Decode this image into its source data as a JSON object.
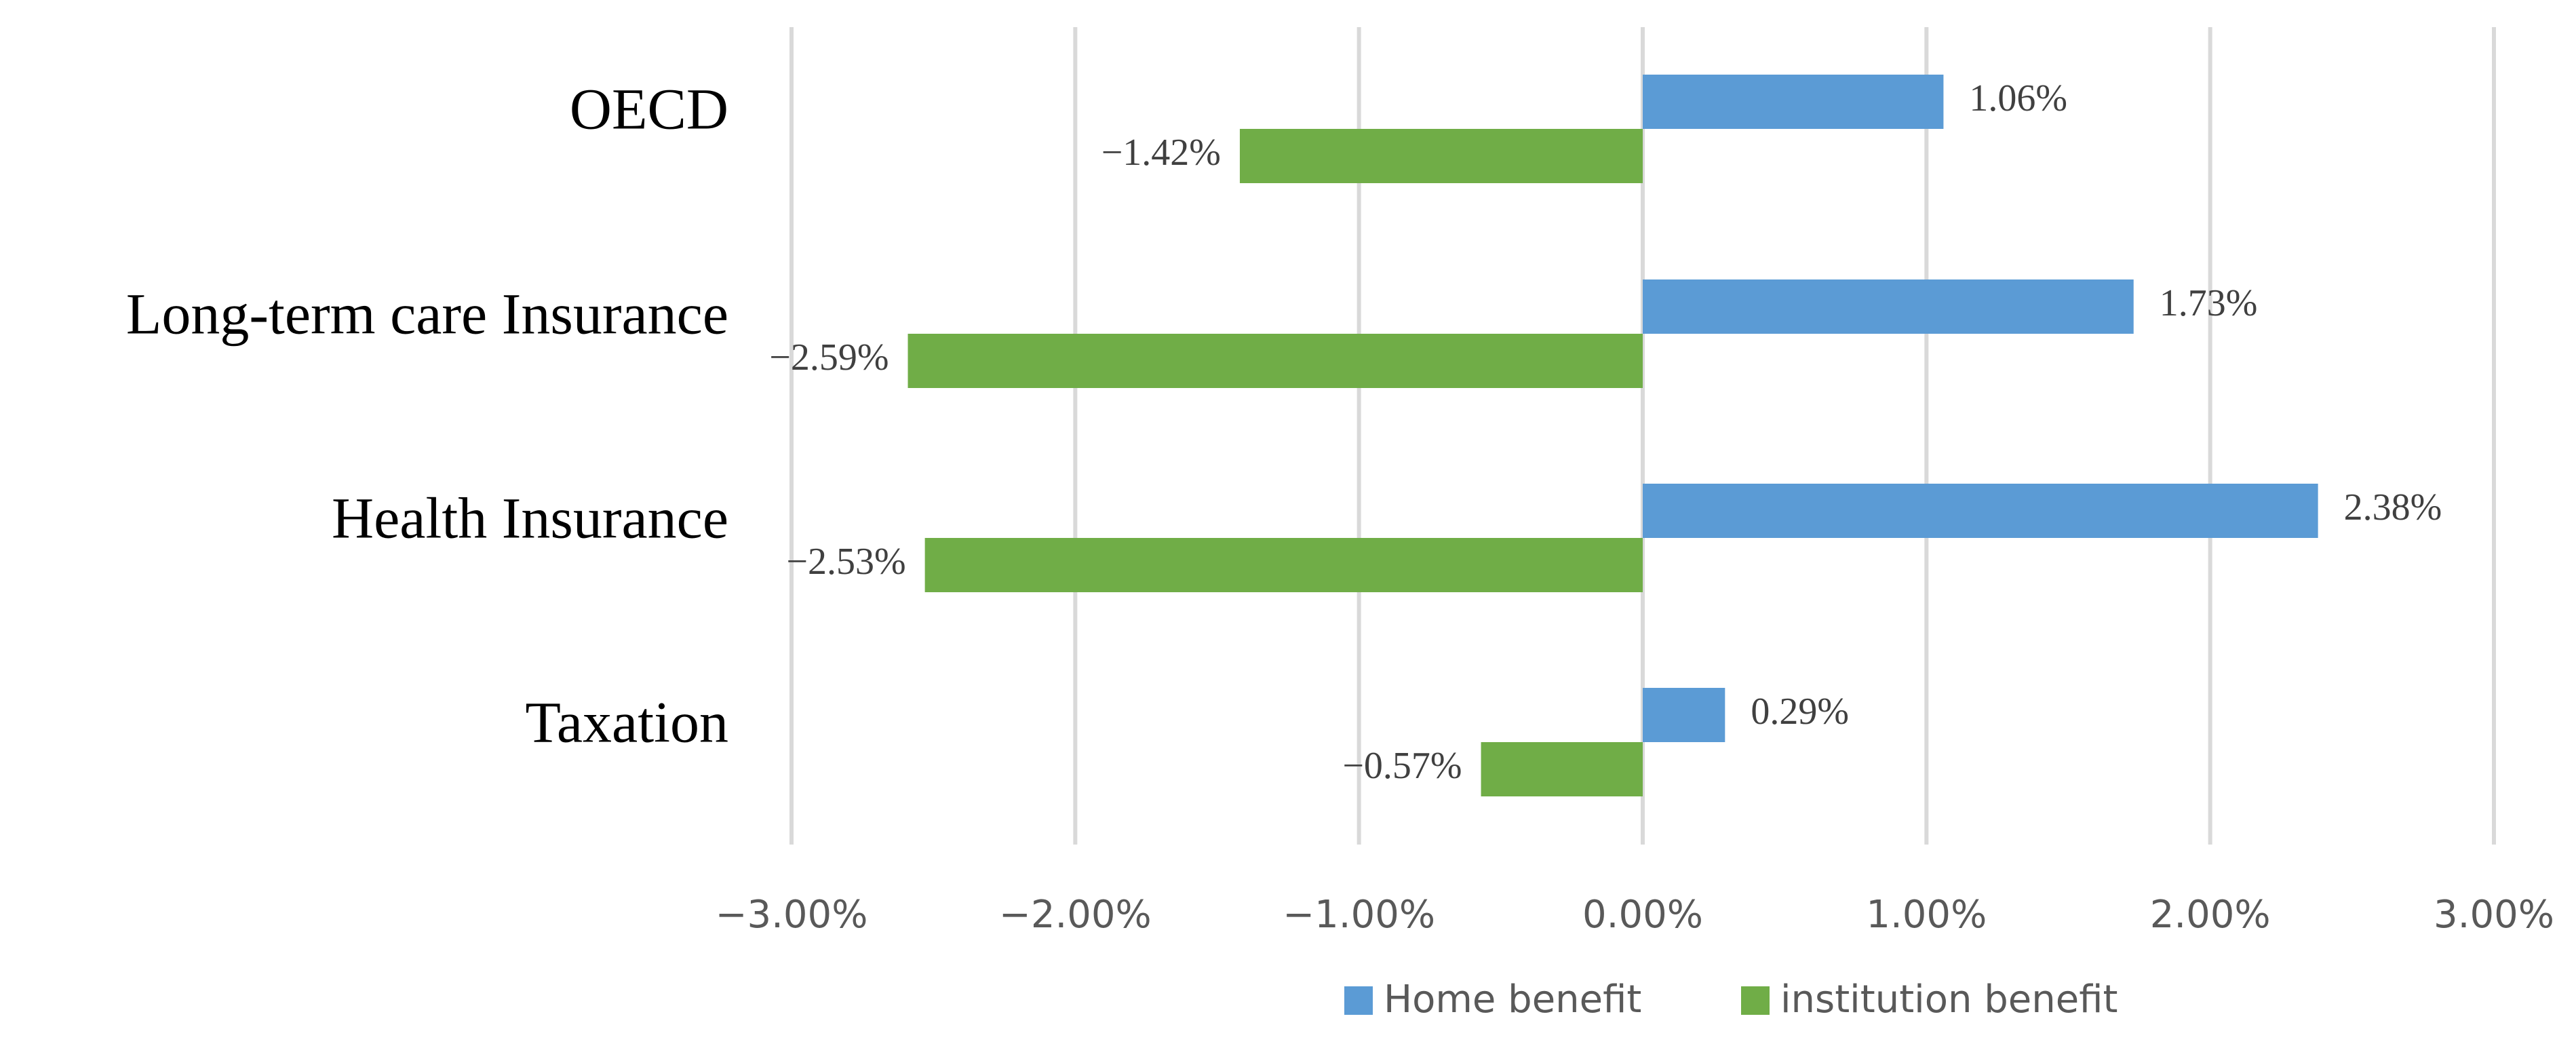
{
  "chart_data": {
    "type": "bar",
    "orientation": "horizontal",
    "title": "",
    "xlabel": "",
    "ylabel": "",
    "xlim": [
      -0.03,
      0.03
    ],
    "grid": true,
    "legend_position": "bottom",
    "categories": [
      "OECD",
      "Long-term care Insurance",
      "Health Insurance",
      "Taxation"
    ],
    "series": [
      {
        "name": "Home benefit",
        "color": "#5B9BD5",
        "values": [
          0.0106,
          0.0173,
          0.0238,
          0.0029
        ],
        "labels": [
          "1.06%",
          "1.73%",
          "2.38%",
          "0.29%"
        ]
      },
      {
        "name": "institution benefit",
        "color": "#70AD47",
        "values": [
          -0.0142,
          -0.0259,
          -0.0253,
          -0.0057
        ],
        "labels": [
          "−1.42%",
          "−2.59%",
          "−2.53%",
          "−0.57%"
        ]
      }
    ],
    "ticks": [
      -0.03,
      -0.02,
      -0.01,
      0,
      0.01,
      0.02,
      0.03
    ],
    "tick_labels": [
      "−3.00%",
      "−2.00%",
      "−1.00%",
      "0.00%",
      "1.00%",
      "2.00%",
      "3.00%"
    ]
  }
}
